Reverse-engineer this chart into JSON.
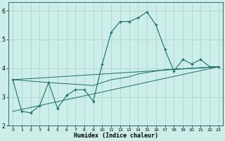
{
  "xlabel": "Humidex (Indice chaleur)",
  "bg_color": "#cceee8",
  "grid_color": "#aacccc",
  "line_color": "#1a6e6a",
  "xlim": [
    -0.5,
    23.5
  ],
  "ylim": [
    2.0,
    6.3
  ],
  "xticks": [
    0,
    1,
    2,
    3,
    4,
    5,
    6,
    7,
    8,
    9,
    10,
    11,
    12,
    13,
    14,
    15,
    16,
    17,
    18,
    19,
    20,
    21,
    22,
    23
  ],
  "yticks": [
    2,
    3,
    4,
    5,
    6
  ],
  "main_x": [
    0,
    1,
    2,
    3,
    4,
    5,
    6,
    7,
    8,
    9,
    10,
    11,
    12,
    13,
    14,
    15,
    16,
    17,
    18,
    19,
    20,
    21,
    22,
    23
  ],
  "main_y": [
    3.6,
    2.5,
    2.45,
    2.7,
    3.5,
    2.6,
    3.05,
    3.25,
    3.25,
    2.85,
    4.15,
    5.25,
    5.62,
    5.62,
    5.75,
    5.95,
    5.5,
    4.65,
    3.9,
    4.3,
    4.15,
    4.3,
    4.05,
    4.05
  ],
  "trend1_x": [
    0,
    23
  ],
  "trend1_y": [
    2.5,
    4.05
  ],
  "trend2_x": [
    0,
    23
  ],
  "trend2_y": [
    3.6,
    4.05
  ],
  "flat_x": [
    0,
    4,
    9,
    10,
    11,
    12,
    13,
    14,
    15,
    16,
    17,
    23
  ],
  "flat_y": [
    3.6,
    3.5,
    3.4,
    3.5,
    3.6,
    3.65,
    3.7,
    3.8,
    3.85,
    3.9,
    3.95,
    4.05
  ]
}
